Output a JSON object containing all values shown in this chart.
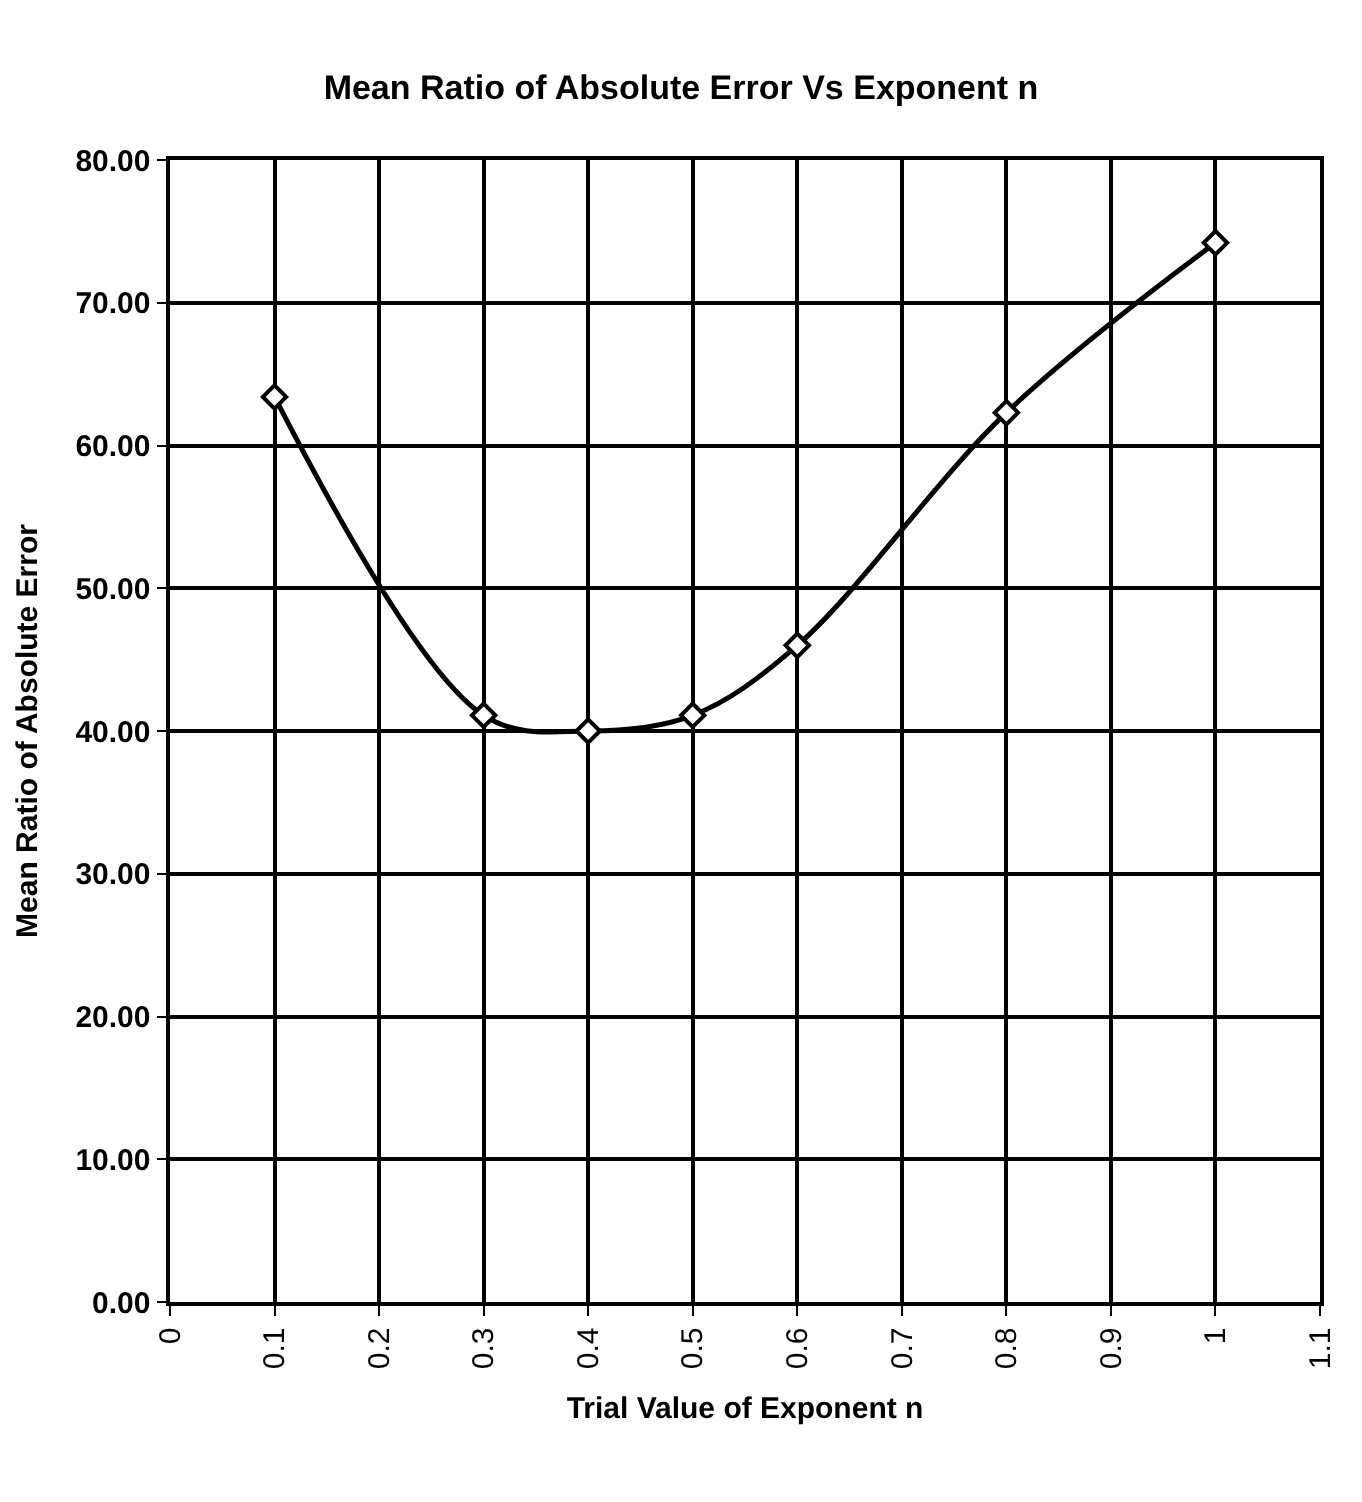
{
  "chart_data": {
    "type": "line",
    "title": "Mean Ratio of Absolute Error Vs Exponent n",
    "xlabel": "Trial Value of Exponent n",
    "ylabel": "Mean Ratio of Absolute Error",
    "x": [
      0.1,
      0.3,
      0.4,
      0.5,
      0.6,
      0.8,
      1.0
    ],
    "series": [
      {
        "color": "#000000",
        "values": [
          63.4,
          41.1,
          40.0,
          41.1,
          46.0,
          62.3,
          74.2
        ]
      }
    ],
    "xlim": [
      0,
      1.1
    ],
    "xticks": [
      0,
      0.1,
      0.2,
      0.3,
      0.4,
      0.5,
      0.6,
      0.7,
      0.8,
      0.9,
      1,
      1.1
    ],
    "ylim": [
      0,
      80
    ],
    "yticks": [
      {
        "value": 0,
        "label": "0.00"
      },
      {
        "value": 10,
        "label": "10.00"
      },
      {
        "value": 20,
        "label": "20.00"
      },
      {
        "value": 30,
        "label": "30.00"
      },
      {
        "value": 40,
        "label": "40.00"
      },
      {
        "value": 50,
        "label": "50.00"
      },
      {
        "value": 60,
        "label": "60.00"
      },
      {
        "value": 70,
        "label": "70.00"
      },
      {
        "value": 80,
        "label": "80.00"
      }
    ],
    "grid": true,
    "marker": "diamond",
    "line_style": "solid"
  }
}
